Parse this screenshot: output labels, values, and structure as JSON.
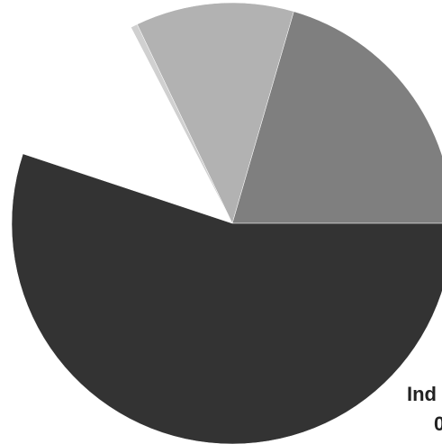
{
  "chart_data": {
    "type": "pie",
    "slices": [
      {
        "value": 20.5,
        "color": "#7f7f7f"
      },
      {
        "value": 11.6,
        "color": "#b2b2b2"
      },
      {
        "value": 0.5,
        "color": "#d0d0d0"
      },
      {
        "value": 12.3,
        "color": "#ffffff"
      },
      {
        "value": 55.1,
        "color": "#333333"
      }
    ],
    "labels": {
      "cut_label_line1": "Ind",
      "cut_label_line2": "0"
    }
  }
}
